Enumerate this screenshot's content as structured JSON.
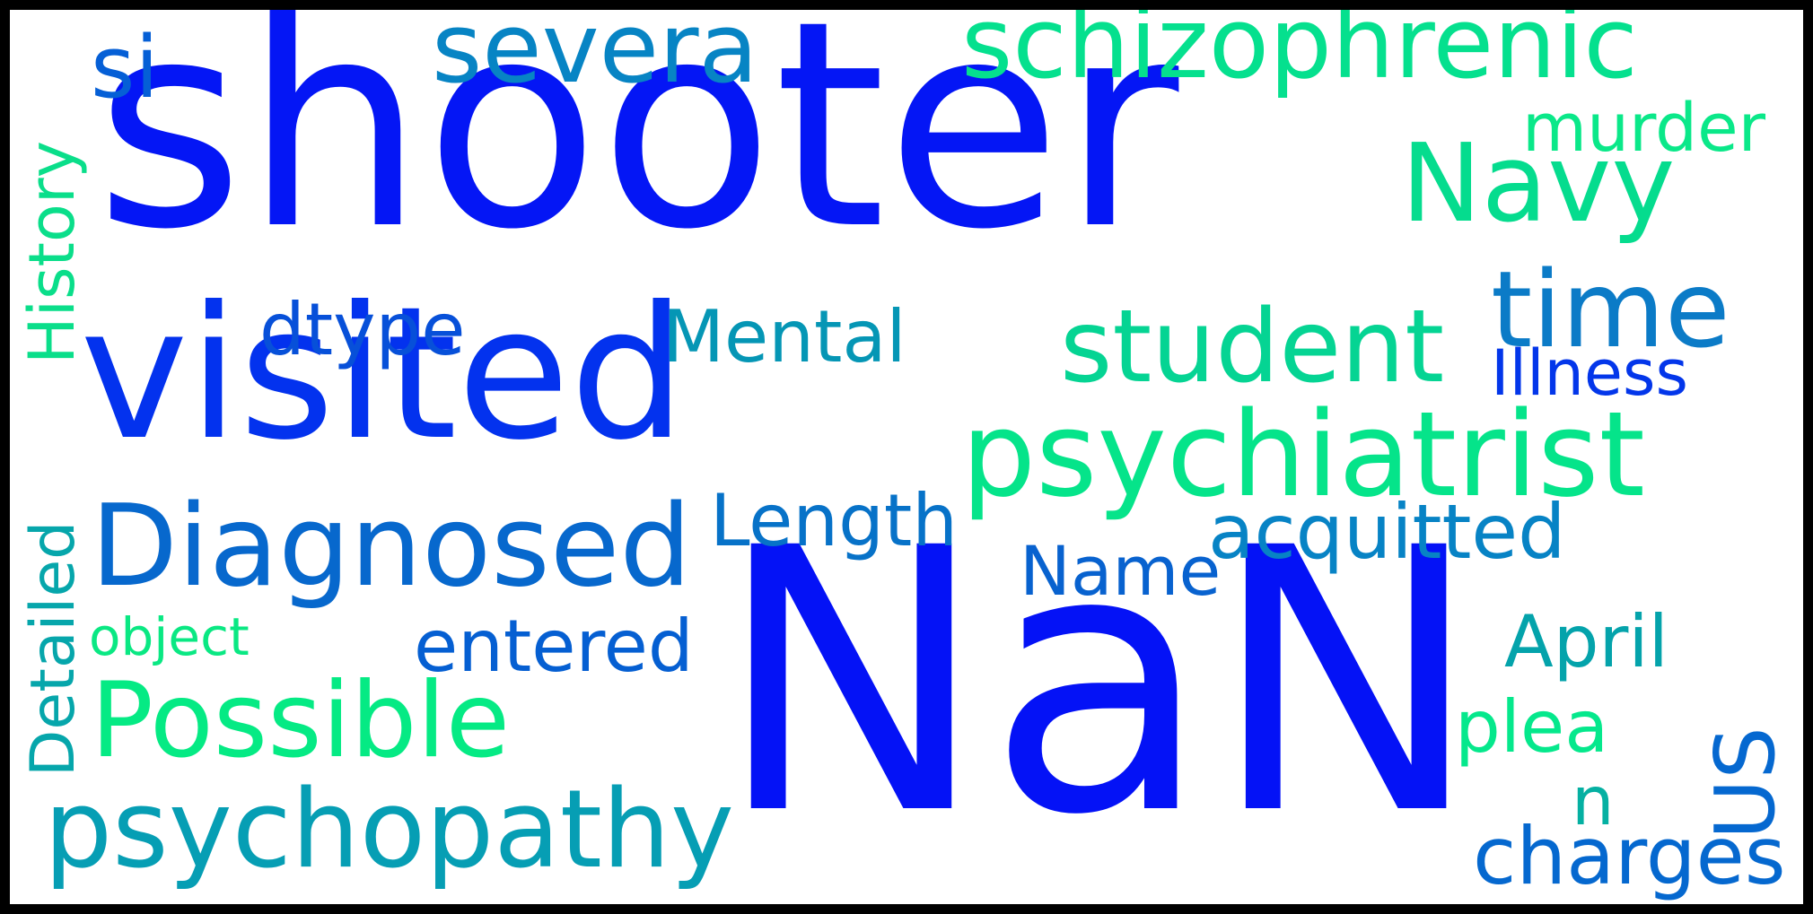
{
  "words": [
    {
      "key": "shooter",
      "text": "shooter",
      "color": "#0416f5"
    },
    {
      "key": "nan",
      "text": "NaN",
      "color": "#0412f6"
    },
    {
      "key": "visited",
      "text": "visited",
      "color": "#0332ee"
    },
    {
      "key": "severa",
      "text": "severa",
      "color": "#0784c4"
    },
    {
      "key": "si",
      "text": "si",
      "color": "#055fd6"
    },
    {
      "key": "schizophrenic",
      "text": "schizophrenic",
      "color": "#05e08e"
    },
    {
      "key": "murder",
      "text": "murder",
      "color": "#0ae889"
    },
    {
      "key": "navy",
      "text": "Navy",
      "color": "#05dc8e"
    },
    {
      "key": "time",
      "text": "time",
      "color": "#0b7bc7"
    },
    {
      "key": "student",
      "text": "student",
      "color": "#05d493"
    },
    {
      "key": "illness",
      "text": "Illness",
      "color": "#0336ea"
    },
    {
      "key": "psychiatrist",
      "text": "psychiatrist",
      "color": "#05e48a"
    },
    {
      "key": "dtype",
      "text": "dtype",
      "color": "#0750d9"
    },
    {
      "key": "mental",
      "text": "Mental",
      "color": "#0596b5"
    },
    {
      "key": "history",
      "text": "History",
      "color": "#0ade8a"
    },
    {
      "key": "diagnosed",
      "text": "Diagnosed",
      "color": "#0768cd"
    },
    {
      "key": "length",
      "text": "Length",
      "color": "#0772c8"
    },
    {
      "key": "acquitted",
      "text": "acquitted",
      "color": "#0783c5"
    },
    {
      "key": "name",
      "text": "Name",
      "color": "#0862cf"
    },
    {
      "key": "detailed",
      "text": "Detailed",
      "color": "#06a6ab"
    },
    {
      "key": "object",
      "text": "object",
      "color": "#0ae883"
    },
    {
      "key": "entered",
      "text": "entered",
      "color": "#055fd2"
    },
    {
      "key": "possible",
      "text": "Possible",
      "color": "#05ea84"
    },
    {
      "key": "april",
      "text": "April",
      "color": "#04a3ab"
    },
    {
      "key": "plea",
      "text": "plea",
      "color": "#05e88c"
    },
    {
      "key": "us",
      "text": "US",
      "color": "#0568d0"
    },
    {
      "key": "n",
      "text": "n",
      "color": "#05b0a2"
    },
    {
      "key": "psychopathy",
      "text": "psychopathy",
      "color": "#069eb4"
    },
    {
      "key": "charges",
      "text": "charges",
      "color": "#0568cf"
    }
  ]
}
